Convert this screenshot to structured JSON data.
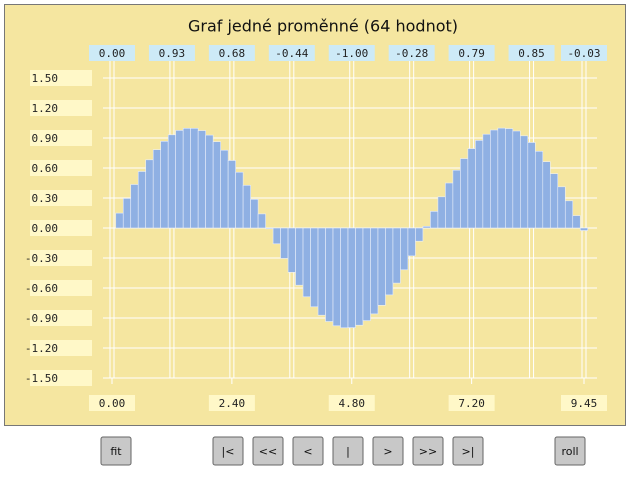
{
  "chart_data": {
    "type": "bar",
    "title": "Graf jedné proměnné (64 hodnot)",
    "x": [
      0,
      0.15,
      0.3,
      0.45,
      0.6,
      0.75,
      0.9,
      1.05,
      1.2,
      1.35,
      1.5,
      1.65,
      1.8,
      1.95,
      2.1,
      2.25,
      2.4,
      2.55,
      2.7,
      2.85,
      3.0,
      3.15,
      3.3,
      3.45,
      3.6,
      3.75,
      3.9,
      4.05,
      4.2,
      4.35,
      4.5,
      4.65,
      4.8,
      4.95,
      5.1,
      5.25,
      5.4,
      5.55,
      5.7,
      5.85,
      6.0,
      6.15,
      6.3,
      6.45,
      6.6,
      6.75,
      6.9,
      7.05,
      7.2,
      7.35,
      7.5,
      7.65,
      7.8,
      7.95,
      8.1,
      8.25,
      8.4,
      8.55,
      8.7,
      8.85,
      9.0,
      9.15,
      9.3,
      9.45
    ],
    "values": [
      0,
      0.149,
      0.296,
      0.435,
      0.565,
      0.682,
      0.783,
      0.867,
      0.932,
      0.976,
      0.997,
      0.997,
      0.974,
      0.929,
      0.863,
      0.778,
      0.675,
      0.558,
      0.427,
      0.287,
      0.141,
      -0.008,
      -0.158,
      -0.304,
      -0.443,
      -0.572,
      -0.688,
      -0.788,
      -0.872,
      -0.935,
      -0.978,
      -0.998,
      -0.996,
      -0.972,
      -0.926,
      -0.859,
      -0.773,
      -0.669,
      -0.551,
      -0.418,
      -0.279,
      -0.132,
      0.017,
      0.166,
      0.312,
      0.45,
      0.578,
      0.694,
      0.794,
      0.876,
      0.938,
      0.98,
      0.999,
      0.994,
      0.97,
      0.922,
      0.855,
      0.767,
      0.663,
      0.543,
      0.412,
      0.272,
      0.124,
      -0.025
    ],
    "value_labels": [
      "0.00",
      null,
      null,
      null,
      null,
      null,
      null,
      null,
      "0.93",
      null,
      null,
      null,
      null,
      null,
      null,
      null,
      "0.68",
      null,
      null,
      null,
      null,
      null,
      null,
      null,
      "-0.44",
      null,
      null,
      null,
      null,
      null,
      null,
      null,
      "-1.00",
      null,
      null,
      null,
      null,
      null,
      null,
      null,
      "-0.28",
      null,
      null,
      null,
      null,
      null,
      null,
      null,
      "0.79",
      null,
      null,
      null,
      null,
      null,
      null,
      null,
      "0.85",
      null,
      null,
      null,
      null,
      null,
      null,
      "-0.03"
    ],
    "color": "#8fb0e3",
    "xlim": [
      0,
      9.45
    ],
    "xticks": [
      {
        "value": 0,
        "label": "0.00"
      },
      {
        "value": 2.4,
        "label": "2.40"
      },
      {
        "value": 4.8,
        "label": "4.80"
      },
      {
        "value": 7.2,
        "label": "7.20"
      },
      {
        "value": 9.45,
        "label": "9.45"
      }
    ],
    "ylim": [
      -1.5,
      1.5
    ],
    "yticks": [
      {
        "value": 1.5,
        "label": "1.50"
      },
      {
        "value": 1.2,
        "label": "1.20"
      },
      {
        "value": 0.9,
        "label": "0.90"
      },
      {
        "value": 0.6,
        "label": "0.60"
      },
      {
        "value": 0.3,
        "label": "0.30"
      },
      {
        "value": 0,
        "label": "0.00"
      },
      {
        "value": -0.3,
        "label": "-0.30"
      },
      {
        "value": -0.6,
        "label": "-0.60"
      },
      {
        "value": -0.9,
        "label": "-0.90"
      },
      {
        "value": -1.2,
        "label": "-1.20"
      },
      {
        "value": -1.5,
        "label": "-1.50"
      }
    ],
    "grid": true
  },
  "controls": [
    "fit",
    "|<",
    "<<",
    "<",
    "|",
    ">",
    ">>",
    ">|",
    "roll"
  ]
}
